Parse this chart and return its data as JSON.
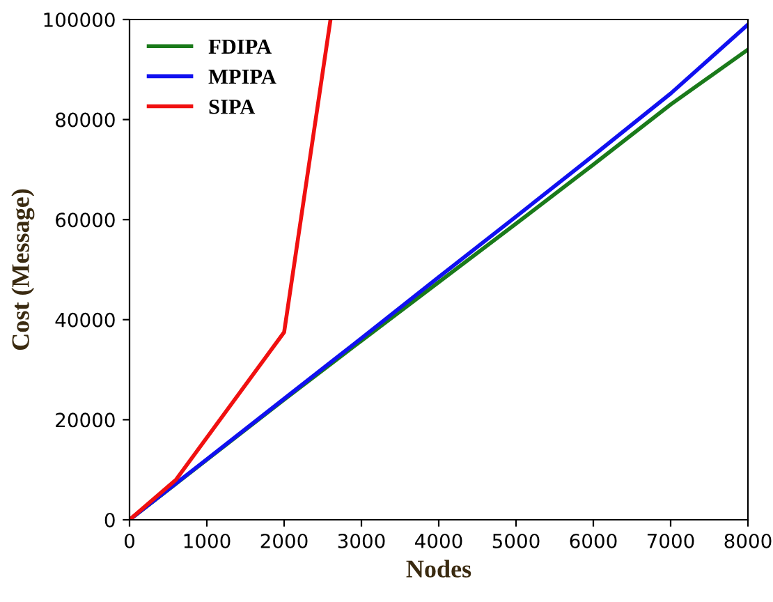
{
  "chart_data": {
    "type": "line",
    "xlabel": "Nodes",
    "ylabel": "Cost (Message)",
    "xlim": [
      0,
      8000
    ],
    "ylim": [
      0,
      100000
    ],
    "xticks": [
      0,
      1000,
      2000,
      3000,
      4000,
      5000,
      6000,
      7000,
      8000
    ],
    "yticks": [
      0,
      20000,
      40000,
      60000,
      80000,
      100000
    ],
    "legend": "top left",
    "grid": false,
    "series": [
      {
        "name": "FDIPA",
        "color": "#1a7a1a",
        "x": [
          0,
          1000,
          2000,
          3000,
          4000,
          5000,
          6000,
          7000,
          8000
        ],
        "values": [
          0,
          12000,
          24000,
          35800,
          47500,
          59200,
          71000,
          83000,
          94000
        ]
      },
      {
        "name": "MPIPA",
        "color": "#1010f0",
        "x": [
          0,
          1000,
          2000,
          3000,
          4000,
          5000,
          6000,
          7000,
          8000
        ],
        "values": [
          0,
          12100,
          24200,
          36300,
          48500,
          60600,
          72800,
          85200,
          99000
        ]
      },
      {
        "name": "SIPA",
        "color": "#f01010",
        "x": [
          0,
          600,
          2000,
          2600
        ],
        "values": [
          0,
          8000,
          37500,
          100000
        ]
      }
    ]
  }
}
